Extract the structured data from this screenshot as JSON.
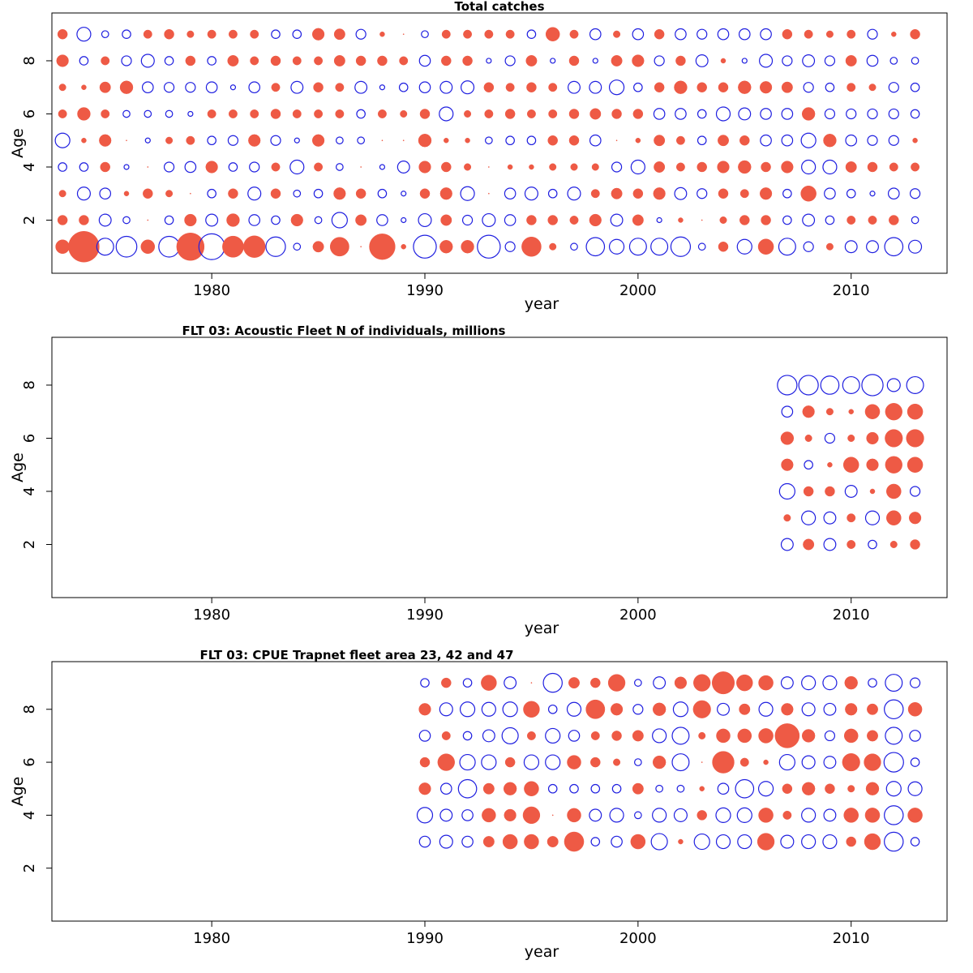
{
  "colors": {
    "positive": "#ee5a45",
    "negative": "#1f1fe0",
    "axis": "#000000"
  },
  "chart_data": [
    {
      "type": "scatter",
      "subtype": "bubble-residuals",
      "title": "Total catches",
      "xlabel": "year",
      "ylabel": "Age",
      "xlim": [
        1972.5,
        2014.5
      ],
      "ylim": [
        0,
        9.8
      ],
      "xticks": [
        1980,
        1990,
        2000,
        2010
      ],
      "yticks": [
        2,
        4,
        6,
        8
      ],
      "grid": false,
      "legend": "none",
      "x_years": [
        1973,
        1974,
        1975,
        1976,
        1977,
        1978,
        1979,
        1980,
        1981,
        1982,
        1983,
        1984,
        1985,
        1986,
        1987,
        1988,
        1989,
        1990,
        1991,
        1992,
        1993,
        1994,
        1995,
        1996,
        1997,
        1998,
        1999,
        2000,
        2001,
        2002,
        2003,
        2004,
        2005,
        2006,
        2007,
        2008,
        2009,
        2010,
        2011,
        2012,
        2013
      ],
      "ages": [
        1,
        2,
        3,
        4,
        5,
        6,
        7,
        8,
        9
      ],
      "note": "values: rows = ages 1..9, columns = years; positive = filled red, negative = open blue circle, bubble area proportional to |value|",
      "values": [
        [
          0.8,
          4.0,
          -1.2,
          -1.8,
          0.8,
          -1.8,
          3.2,
          -2.8,
          1.9,
          2.0,
          -1.6,
          -0.2,
          0.5,
          1.5,
          0.0,
          2.8,
          0.1,
          -2.2,
          0.7,
          0.7,
          -2.2,
          -0.4,
          1.6,
          0.2,
          -0.2,
          -1.4,
          -0.9,
          -1.2,
          -1.2,
          -1.6,
          -0.2,
          0.4,
          -0.9,
          1.0,
          -1.2,
          -0.4,
          0.2,
          -0.6,
          -0.6,
          -1.4,
          -0.7
        ],
        [
          0.4,
          0.4,
          -0.6,
          -0.2,
          0.0,
          -0.3,
          0.6,
          -0.6,
          0.7,
          -0.5,
          -0.3,
          0.6,
          -0.2,
          -1.0,
          0.5,
          -0.5,
          -0.1,
          -0.7,
          0.5,
          -0.4,
          -0.7,
          -0.5,
          0.4,
          0.4,
          0.3,
          0.6,
          -0.6,
          0.5,
          -0.1,
          0.1,
          0.0,
          0.2,
          0.4,
          0.4,
          -0.3,
          -0.6,
          -0.3,
          0.3,
          0.3,
          0.4,
          -0.2
        ],
        [
          0.2,
          -0.7,
          -0.5,
          0.1,
          0.4,
          0.2,
          0.0,
          -0.3,
          0.4,
          -0.7,
          0.4,
          -0.2,
          -0.3,
          0.6,
          0.4,
          -0.3,
          -0.1,
          0.4,
          0.6,
          -0.8,
          0.0,
          -0.5,
          -0.7,
          -0.3,
          -0.7,
          0.3,
          0.5,
          0.4,
          0.6,
          -0.6,
          -0.4,
          0.4,
          0.3,
          0.6,
          -0.3,
          1.0,
          -0.5,
          -0.3,
          -0.1,
          -0.5,
          -0.4
        ],
        [
          -0.3,
          -0.3,
          0.4,
          -0.1,
          0.0,
          -0.4,
          -0.5,
          0.6,
          -0.3,
          -0.4,
          0.3,
          -0.8,
          0.3,
          -0.2,
          0.0,
          -0.1,
          -0.6,
          0.6,
          0.4,
          0.2,
          0.0,
          0.1,
          0.1,
          0.2,
          0.2,
          0.2,
          -0.4,
          -0.8,
          0.5,
          0.3,
          0.4,
          0.6,
          0.7,
          0.4,
          0.6,
          -0.8,
          -0.8,
          0.5,
          0.4,
          0.3,
          0.3
        ],
        [
          -0.9,
          0.1,
          0.6,
          0.0,
          -0.1,
          0.2,
          0.3,
          -0.3,
          -0.4,
          0.6,
          -0.4,
          -0.1,
          0.6,
          -0.2,
          -0.2,
          0.0,
          0.0,
          0.7,
          0.1,
          0.1,
          -0.2,
          -0.3,
          -0.3,
          0.4,
          0.4,
          -0.5,
          0.0,
          0.1,
          0.5,
          0.3,
          -0.3,
          0.5,
          0.4,
          -0.5,
          -0.5,
          -0.9,
          0.7,
          -0.5,
          -0.4,
          -0.4,
          0.1
        ],
        [
          0.3,
          0.7,
          0.3,
          -0.2,
          -0.2,
          -0.2,
          -0.1,
          0.3,
          0.3,
          0.3,
          0.4,
          0.3,
          0.3,
          0.3,
          -0.3,
          0.3,
          0.2,
          0.4,
          -0.8,
          0.2,
          0.3,
          0.4,
          0.3,
          0.3,
          0.4,
          0.5,
          0.4,
          0.4,
          -0.5,
          -0.5,
          -0.3,
          -0.8,
          -0.6,
          -0.5,
          -0.5,
          0.7,
          -0.4,
          -0.4,
          -0.4,
          -0.4,
          -0.3
        ],
        [
          0.2,
          0.1,
          0.5,
          0.7,
          -0.5,
          -0.4,
          -0.4,
          -0.5,
          -0.1,
          -0.5,
          0.3,
          -0.6,
          0.4,
          0.3,
          -0.6,
          -0.1,
          -0.3,
          -0.5,
          -0.6,
          -0.7,
          0.4,
          0.3,
          0.4,
          0.3,
          -0.6,
          -0.6,
          -0.9,
          -0.3,
          0.4,
          0.7,
          0.4,
          0.4,
          0.7,
          0.6,
          0.5,
          -0.4,
          -0.3,
          0.3,
          0.2,
          -0.4,
          -0.3
        ],
        [
          0.6,
          -0.3,
          0.3,
          -0.4,
          -0.7,
          -0.3,
          0.4,
          -0.3,
          0.5,
          0.3,
          0.4,
          0.3,
          0.3,
          0.5,
          0.4,
          0.4,
          0.3,
          -0.5,
          0.4,
          0.4,
          -0.1,
          -0.4,
          0.5,
          -0.1,
          0.4,
          -0.1,
          0.5,
          0.6,
          -0.4,
          0.4,
          -0.6,
          0.1,
          -0.1,
          -0.7,
          -0.4,
          -0.6,
          -0.4,
          0.5,
          -0.5,
          -0.2,
          -0.2
        ],
        [
          0.4,
          -0.8,
          -0.2,
          -0.3,
          0.3,
          0.4,
          0.2,
          0.3,
          0.3,
          0.3,
          -0.3,
          -0.3,
          0.6,
          0.5,
          -0.4,
          0.1,
          0.0,
          -0.2,
          0.3,
          0.3,
          0.3,
          0.3,
          -0.3,
          0.8,
          0.3,
          -0.5,
          0.2,
          -0.5,
          0.4,
          -0.5,
          -0.4,
          -0.5,
          -0.5,
          -0.5,
          0.4,
          0.3,
          0.2,
          0.3,
          -0.4,
          0.1,
          0.4
        ]
      ]
    },
    {
      "type": "scatter",
      "subtype": "bubble-residuals",
      "title": "FLT 03: Acoustic Fleet   N of individuals, millions",
      "xlabel": "year",
      "ylabel": "Age",
      "xlim": [
        1972.5,
        2014.5
      ],
      "ylim": [
        0,
        9.8
      ],
      "xticks": [
        1980,
        1990,
        2000,
        2010
      ],
      "yticks": [
        2,
        4,
        6,
        8
      ],
      "grid": false,
      "legend": "none",
      "x_years": [
        2007,
        2008,
        2009,
        2010,
        2011,
        2012,
        2013
      ],
      "ages": [
        2,
        3,
        4,
        5,
        6,
        7,
        8
      ],
      "values": [
        [
          -0.6,
          0.5,
          -0.6,
          0.3,
          -0.3,
          0.2,
          0.4
        ],
        [
          0.2,
          -0.8,
          -0.6,
          0.3,
          -0.8,
          0.9,
          0.6
        ],
        [
          -1.0,
          0.4,
          0.4,
          -0.6,
          0.1,
          0.9,
          -0.4
        ],
        [
          0.6,
          -0.3,
          0.1,
          1.0,
          0.6,
          1.2,
          1.0
        ],
        [
          0.7,
          0.2,
          -0.4,
          0.2,
          0.6,
          1.3,
          1.3
        ],
        [
          -0.5,
          0.6,
          0.2,
          0.1,
          0.9,
          1.2,
          1.0
        ],
        [
          -1.6,
          -1.6,
          -1.4,
          -1.2,
          -1.9,
          -0.7,
          -1.2
        ]
      ]
    },
    {
      "type": "scatter",
      "subtype": "bubble-residuals",
      "title": "FLT 03: CPUE Trapnet fleet area 23, 42 and 47",
      "xlabel": "year",
      "ylabel": "Age",
      "xlim": [
        1972.5,
        2014.5
      ],
      "ylim": [
        0,
        9.8
      ],
      "xticks": [
        1980,
        1990,
        2000,
        2010
      ],
      "yticks": [
        2,
        4,
        6,
        8
      ],
      "grid": false,
      "legend": "none",
      "x_years": [
        1990,
        1991,
        1992,
        1993,
        1994,
        1995,
        1996,
        1997,
        1998,
        1999,
        2000,
        2001,
        2002,
        2003,
        2004,
        2005,
        2006,
        2007,
        2008,
        2009,
        2010,
        2011,
        2012,
        2013
      ],
      "ages": [
        3,
        4,
        5,
        6,
        7,
        8,
        9
      ],
      "values": [
        [
          -0.5,
          -0.7,
          -0.5,
          0.5,
          0.9,
          0.9,
          0.5,
          1.6,
          -0.3,
          -0.5,
          0.9,
          -1.1,
          0.1,
          -1.0,
          -0.8,
          -0.8,
          1.2,
          -0.7,
          -0.8,
          -0.8,
          0.4,
          1.1,
          -1.5,
          -0.3
        ],
        [
          -1.0,
          -0.6,
          -0.5,
          0.8,
          0.6,
          1.2,
          0.0,
          0.8,
          -0.6,
          -0.8,
          -0.2,
          -0.8,
          -0.7,
          0.4,
          -0.9,
          -0.9,
          0.9,
          0.3,
          -0.8,
          -0.6,
          0.9,
          0.9,
          -1.5,
          0.9
        ],
        [
          0.6,
          -0.5,
          -1.4,
          0.5,
          0.7,
          0.9,
          -0.3,
          -0.3,
          -0.3,
          -0.3,
          0.5,
          -0.2,
          -0.2,
          0.1,
          -0.5,
          -1.4,
          -0.9,
          0.4,
          0.7,
          0.4,
          0.2,
          0.7,
          -0.9,
          -0.8
        ],
        [
          0.4,
          1.2,
          -1.0,
          -0.9,
          0.4,
          -0.9,
          -0.9,
          0.8,
          0.4,
          0.2,
          -0.2,
          0.7,
          -1.2,
          0.0,
          2.0,
          0.3,
          0.1,
          -1.0,
          -0.7,
          -0.6,
          1.3,
          1.2,
          -1.6,
          -0.3
        ],
        [
          -0.5,
          0.3,
          -0.3,
          -0.6,
          -1.1,
          0.3,
          -0.9,
          -0.5,
          0.3,
          0.4,
          0.5,
          -0.8,
          -1.2,
          0.2,
          0.8,
          0.8,
          0.9,
          2.5,
          0.7,
          -0.4,
          0.8,
          0.5,
          -1.2,
          -0.5
        ],
        [
          0.6,
          -0.7,
          -0.9,
          -0.8,
          -0.9,
          1.1,
          -0.3,
          -0.8,
          1.5,
          0.6,
          -0.4,
          0.7,
          -0.9,
          1.3,
          -0.6,
          0.5,
          -0.8,
          0.6,
          -0.7,
          -0.6,
          0.6,
          0.5,
          -1.5,
          0.8
        ],
        [
          -0.3,
          0.4,
          -0.3,
          1.0,
          -0.6,
          0.0,
          -1.5,
          0.5,
          0.4,
          1.2,
          -0.2,
          -0.6,
          0.6,
          1.2,
          2.1,
          1.1,
          0.9,
          -0.6,
          -0.8,
          -0.8,
          0.7,
          -0.3,
          -1.2,
          -0.4
        ]
      ]
    }
  ]
}
